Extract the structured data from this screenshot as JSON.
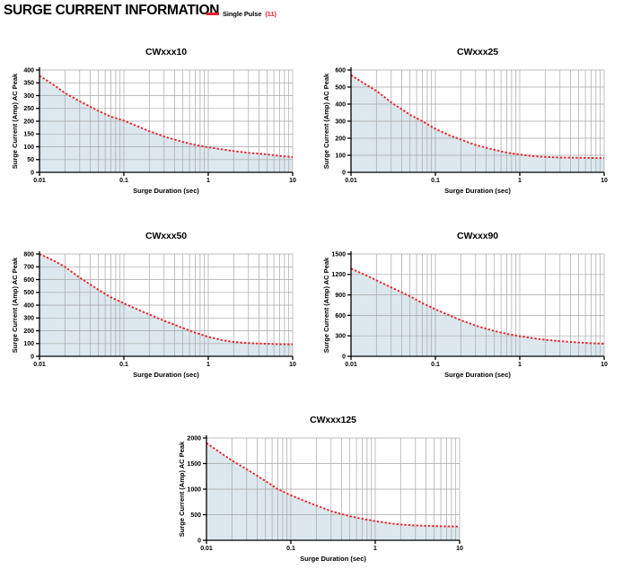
{
  "header": {
    "title": "SURGE CURRENT INFORMATION",
    "legend": {
      "label": "Single Pulse",
      "note": "(11)"
    }
  },
  "colors": {
    "curve_red": "#e8232a",
    "area_fill": "#dce8ee",
    "grid": "#a6a6a6",
    "axis": "#000000"
  },
  "chart_data": [
    {
      "type": "area",
      "title": "CWxxx10",
      "xlabel": "Surge Duration (sec)",
      "ylabel": "Surge Current (Amp) AC Peak",
      "xscale": "log",
      "xlim": [
        0.01,
        10
      ],
      "ylim": [
        0,
        400
      ],
      "ytick_step": 50,
      "xticks": [
        0.01,
        0.1,
        1,
        10
      ],
      "xtick_labels": [
        "0.01",
        "0.1",
        "1",
        "10"
      ],
      "grid": true,
      "legend": "Single Pulse",
      "series": [
        {
          "name": "Single Pulse",
          "points": [
            [
              0.01,
              378
            ],
            [
              0.015,
              340
            ],
            [
              0.02,
              310
            ],
            [
              0.03,
              278
            ],
            [
              0.05,
              240
            ],
            [
              0.07,
              218
            ],
            [
              0.1,
              202
            ],
            [
              0.15,
              178
            ],
            [
              0.2,
              161
            ],
            [
              0.3,
              140
            ],
            [
              0.5,
              119
            ],
            [
              0.7,
              107
            ],
            [
              1,
              98
            ],
            [
              1.5,
              89
            ],
            [
              2,
              83
            ],
            [
              3,
              76
            ],
            [
              5,
              70
            ],
            [
              7,
              64
            ],
            [
              10,
              60
            ]
          ]
        }
      ]
    },
    {
      "type": "area",
      "title": "CWxxx25",
      "xlabel": "Surge Duration (sec)",
      "ylabel": "Surge Current (Amp) AC Peak",
      "xscale": "log",
      "xlim": [
        0.01,
        10
      ],
      "ylim": [
        0,
        600
      ],
      "ytick_step": 100,
      "xticks": [
        0.01,
        0.1,
        1,
        10
      ],
      "xtick_labels": [
        "0.01",
        "0.1",
        "1",
        "10"
      ],
      "grid": true,
      "legend": "Single Pulse",
      "series": [
        {
          "name": "Single Pulse",
          "points": [
            [
              0.01,
              570
            ],
            [
              0.015,
              515
            ],
            [
              0.02,
              478
            ],
            [
              0.03,
              410
            ],
            [
              0.05,
              338
            ],
            [
              0.07,
              300
            ],
            [
              0.1,
              255
            ],
            [
              0.15,
              215
            ],
            [
              0.2,
              192
            ],
            [
              0.3,
              160
            ],
            [
              0.5,
              132
            ],
            [
              0.7,
              116
            ],
            [
              1,
              104
            ],
            [
              1.5,
              94
            ],
            [
              2,
              90
            ],
            [
              3,
              87
            ],
            [
              5,
              85
            ],
            [
              7,
              84
            ],
            [
              10,
              83
            ]
          ]
        }
      ]
    },
    {
      "type": "area",
      "title": "CWxxx50",
      "xlabel": "Surge Duration (sec)",
      "ylabel": "Surge Current (Amp) AC Peak",
      "xscale": "log",
      "xlim": [
        0.01,
        10
      ],
      "ylim": [
        0,
        800
      ],
      "ytick_step": 100,
      "xticks": [
        0.01,
        0.1,
        1,
        10
      ],
      "xtick_labels": [
        "0.01",
        "0.1",
        "1",
        "10"
      ],
      "grid": true,
      "legend": "Single Pulse",
      "series": [
        {
          "name": "Single Pulse",
          "points": [
            [
              0.01,
              800
            ],
            [
              0.015,
              745
            ],
            [
              0.02,
              700
            ],
            [
              0.03,
              615
            ],
            [
              0.05,
              520
            ],
            [
              0.07,
              462
            ],
            [
              0.1,
              415
            ],
            [
              0.15,
              362
            ],
            [
              0.2,
              328
            ],
            [
              0.3,
              278
            ],
            [
              0.5,
              222
            ],
            [
              0.7,
              185
            ],
            [
              1,
              152
            ],
            [
              1.5,
              125
            ],
            [
              2,
              112
            ],
            [
              3,
              103
            ],
            [
              5,
              98
            ],
            [
              7,
              95
            ],
            [
              10,
              93
            ]
          ]
        }
      ]
    },
    {
      "type": "area",
      "title": "CWxxx90",
      "xlabel": "Surge Duration (sec)",
      "ylabel": "Surge Current (Amp) AC Peak",
      "xscale": "log",
      "xlim": [
        0.01,
        10
      ],
      "ylim": [
        0,
        1500
      ],
      "ytick_step": 300,
      "xticks": [
        0.01,
        0.1,
        1,
        10
      ],
      "xtick_labels": [
        "0.01",
        "0.1",
        "1",
        "10"
      ],
      "grid": true,
      "legend": "Single Pulse",
      "series": [
        {
          "name": "Single Pulse",
          "points": [
            [
              0.01,
              1285
            ],
            [
              0.015,
              1190
            ],
            [
              0.02,
              1115
            ],
            [
              0.03,
              1010
            ],
            [
              0.05,
              880
            ],
            [
              0.07,
              780
            ],
            [
              0.1,
              690
            ],
            [
              0.15,
              595
            ],
            [
              0.2,
              530
            ],
            [
              0.3,
              450
            ],
            [
              0.5,
              370
            ],
            [
              0.7,
              330
            ],
            [
              1,
              295
            ],
            [
              1.5,
              262
            ],
            [
              2,
              242
            ],
            [
              3,
              222
            ],
            [
              5,
              202
            ],
            [
              7,
              192
            ],
            [
              10,
              185
            ]
          ]
        }
      ]
    },
    {
      "type": "area",
      "title": "CWxxx125",
      "xlabel": "Surge Duration (sec)",
      "ylabel": "Surge Current (Amp) AC Peak",
      "xscale": "log",
      "xlim": [
        0.01,
        10
      ],
      "ylim": [
        0,
        2000
      ],
      "ytick_step": 500,
      "xticks": [
        0.01,
        0.1,
        1,
        10
      ],
      "xtick_labels": [
        "0.01",
        "0.1",
        "1",
        "10"
      ],
      "grid": true,
      "legend": "Single Pulse",
      "series": [
        {
          "name": "Single Pulse",
          "points": [
            [
              0.01,
              1900
            ],
            [
              0.015,
              1700
            ],
            [
              0.02,
              1560
            ],
            [
              0.03,
              1390
            ],
            [
              0.05,
              1160
            ],
            [
              0.07,
              1000
            ],
            [
              0.1,
              880
            ],
            [
              0.15,
              760
            ],
            [
              0.2,
              680
            ],
            [
              0.3,
              570
            ],
            [
              0.5,
              470
            ],
            [
              0.7,
              420
            ],
            [
              1,
              375
            ],
            [
              1.5,
              330
            ],
            [
              2,
              308
            ],
            [
              3,
              290
            ],
            [
              5,
              278
            ],
            [
              7,
              272
            ],
            [
              10,
              268
            ]
          ]
        }
      ]
    }
  ]
}
